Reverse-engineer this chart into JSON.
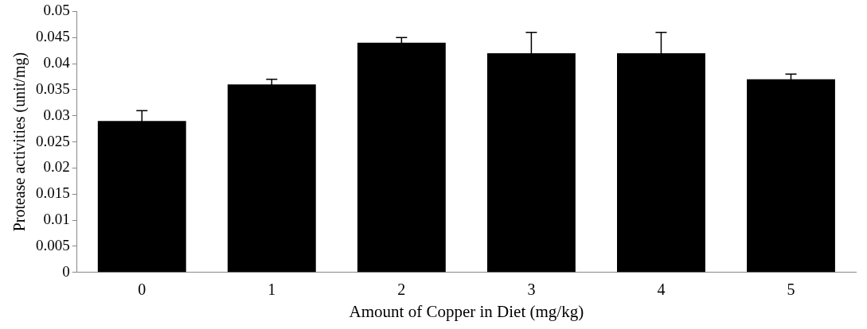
{
  "chart_data": {
    "type": "bar",
    "xlabel": "Amount of Copper in Diet (mg/kg)",
    "ylabel": "Protease activities (unit/mg)",
    "categories": [
      "0",
      "1",
      "2",
      "3",
      "4",
      "5"
    ],
    "values": [
      0.029,
      0.036,
      0.044,
      0.042,
      0.042,
      0.037
    ],
    "errors": [
      0.002,
      0.001,
      0.001,
      0.004,
      0.004,
      0.001
    ],
    "color": "#000000",
    "ylim": [
      0,
      0.05
    ],
    "yticks": [
      0,
      0.005,
      0.01,
      0.015,
      0.02,
      0.025,
      0.03,
      0.035,
      0.04,
      0.045,
      0.05
    ],
    "grid": false,
    "legend": false
  }
}
